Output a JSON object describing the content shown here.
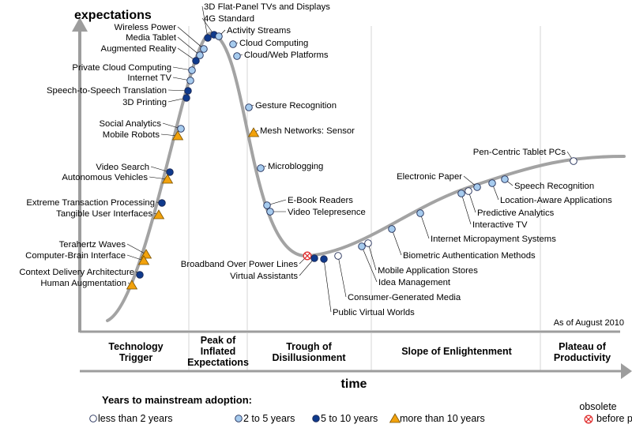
{
  "chart_data": {
    "type": "scatter",
    "title": "",
    "ylabel": "expectations",
    "xlabel": "time",
    "as_of": "As of August 2010",
    "phases": [
      {
        "name": "Technology Trigger",
        "lines": [
          "Technology",
          "Trigger"
        ]
      },
      {
        "name": "Peak of Inflated Expectations",
        "lines": [
          "Peak of",
          "Inflated",
          "Expectations"
        ]
      },
      {
        "name": "Trough of Disillusionment",
        "lines": [
          "Trough of",
          "Disillusionment"
        ]
      },
      {
        "name": "Slope of Enlightenment",
        "lines": [
          "Slope of Enlightenment"
        ]
      },
      {
        "name": "Plateau of Productivity",
        "lines": [
          "Plateau of",
          "Productivity"
        ]
      }
    ],
    "legend": {
      "title": "Years to mainstream adoption:",
      "items": [
        {
          "key": "lt2",
          "label": "less than 2 years"
        },
        {
          "key": "2to5",
          "label": "2 to 5 years"
        },
        {
          "key": "5to10",
          "label": "5 to 10 years"
        },
        {
          "key": "gt10",
          "label": "more than 10 years"
        },
        {
          "key": "obsolete",
          "label": "obsolete",
          "label2": "before plateau"
        }
      ]
    },
    "colors": {
      "lt2": "#ffffff",
      "2to5": "#a6cbee",
      "5to10": "#0f3a8c",
      "gt10": "#f2a20c",
      "obsolete": "#e03030",
      "curve": "#a3a3a3",
      "axis": "#9d9d9d"
    },
    "technologies": [
      {
        "name": "3D Flat-Panel TVs and Displays",
        "adoption": "5to10"
      },
      {
        "name": "4G Standard",
        "adoption": "5to10"
      },
      {
        "name": "Activity Streams",
        "adoption": "2to5"
      },
      {
        "name": "Wireless Power",
        "adoption": "2to5"
      },
      {
        "name": "Media Tablet",
        "adoption": "2to5"
      },
      {
        "name": "Augmented Reality",
        "adoption": "5to10"
      },
      {
        "name": "Private Cloud Computing",
        "adoption": "2to5"
      },
      {
        "name": "Internet TV",
        "adoption": "2to5"
      },
      {
        "name": "Speech-to-Speech Translation",
        "adoption": "5to10"
      },
      {
        "name": "3D Printing",
        "adoption": "5to10"
      },
      {
        "name": "Social Analytics",
        "adoption": "2to5"
      },
      {
        "name": "Mobile Robots",
        "adoption": "gt10"
      },
      {
        "name": "Video Search",
        "adoption": "5to10"
      },
      {
        "name": "Autonomous Vehicles",
        "adoption": "gt10"
      },
      {
        "name": "Extreme Transaction Processing",
        "adoption": "5to10"
      },
      {
        "name": "Tangible User Interfaces",
        "adoption": "gt10"
      },
      {
        "name": "Terahertz Waves",
        "adoption": "gt10"
      },
      {
        "name": "Computer-Brain Interface",
        "adoption": "gt10"
      },
      {
        "name": "Context Delivery Architecture",
        "adoption": "5to10"
      },
      {
        "name": "Human Augmentation",
        "adoption": "gt10"
      },
      {
        "name": "Cloud Computing",
        "adoption": "2to5"
      },
      {
        "name": "Cloud/Web Platforms",
        "adoption": "2to5"
      },
      {
        "name": "Gesture Recognition",
        "adoption": "2to5"
      },
      {
        "name": "Mesh Networks: Sensor",
        "adoption": "gt10"
      },
      {
        "name": "Microblogging",
        "adoption": "2to5"
      },
      {
        "name": "E-Book Readers",
        "adoption": "2to5"
      },
      {
        "name": "Video Telepresence",
        "adoption": "2to5"
      },
      {
        "name": "Broadband Over Power Lines",
        "adoption": "obsolete"
      },
      {
        "name": "Virtual Assistants",
        "adoption": "5to10"
      },
      {
        "name": "Public Virtual Worlds",
        "adoption": "5to10"
      },
      {
        "name": "Consumer-Generated Media",
        "adoption": "lt2"
      },
      {
        "name": "Idea Management",
        "adoption": "2to5"
      },
      {
        "name": "Mobile Application Stores",
        "adoption": "lt2"
      },
      {
        "name": "Biometric Authentication Methods",
        "adoption": "2to5"
      },
      {
        "name": "Internet Micropayment Systems",
        "adoption": "2to5"
      },
      {
        "name": "Interactive TV",
        "adoption": "2to5"
      },
      {
        "name": "Predictive Analytics",
        "adoption": "lt2"
      },
      {
        "name": "Electronic Paper",
        "adoption": "2to5"
      },
      {
        "name": "Location-Aware Applications",
        "adoption": "2to5"
      },
      {
        "name": "Speech Recognition",
        "adoption": "2to5"
      },
      {
        "name": "Pen-Centric Tablet PCs",
        "adoption": "lt2"
      }
    ]
  }
}
